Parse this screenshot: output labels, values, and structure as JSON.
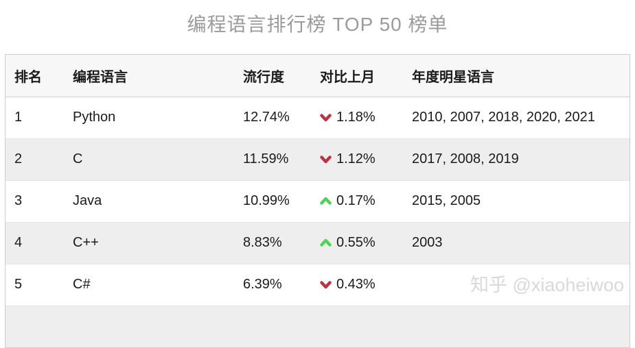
{
  "title": "编程语言排行榜 TOP 50 榜单",
  "watermark": "知乎 @xiaoheiwoo",
  "colors": {
    "trend_up": "#4fd353",
    "trend_down": "#bd3241"
  },
  "table": {
    "headers": [
      "排名",
      "编程语言",
      "流行度",
      "对比上月",
      "年度明星语言"
    ],
    "rows": [
      {
        "rank": "1",
        "language": "Python",
        "popularity": "12.74%",
        "trend": "down",
        "change": "1.18%",
        "star_years": "2010, 2007, 2018, 2020, 2021"
      },
      {
        "rank": "2",
        "language": "C",
        "popularity": "11.59%",
        "trend": "down",
        "change": "1.12%",
        "star_years": "2017, 2008, 2019"
      },
      {
        "rank": "3",
        "language": "Java",
        "popularity": "10.99%",
        "trend": "up",
        "change": "0.17%",
        "star_years": "2015, 2005"
      },
      {
        "rank": "4",
        "language": "C++",
        "popularity": "8.83%",
        "trend": "up",
        "change": "0.55%",
        "star_years": "2003"
      },
      {
        "rank": "5",
        "language": "C#",
        "popularity": "6.39%",
        "trend": "down",
        "change": "0.43%",
        "star_years": ""
      }
    ]
  }
}
